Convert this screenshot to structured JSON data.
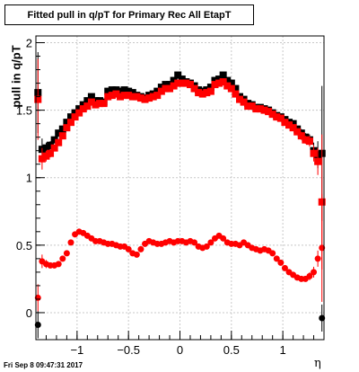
{
  "title_box": "Fitted pull in q/pT for Primary Rec All EtapT",
  "datestamp": "Fri Sep  8 09:47:31 2017",
  "chart_data": {
    "type": "scatter",
    "title": "Fitted pull in q/pT for Primary Rec All EtapT",
    "xlabel": "η",
    "ylabel": "pull in q/pT",
    "xlim": [
      -1.4,
      1.4
    ],
    "ylim": [
      -0.2,
      2.05
    ],
    "xticks": [
      -1,
      -0.5,
      0,
      0.5,
      1
    ],
    "xtick_labels": [
      "−1",
      "−0.5",
      "0",
      "0.5",
      "1"
    ],
    "yticks": [
      0,
      0.5,
      1,
      1.5,
      2
    ],
    "ytick_labels": [
      "0",
      "0.5",
      "1",
      "1.5",
      "2"
    ],
    "grid": true,
    "legend": "none",
    "series": [
      {
        "color": "#000000",
        "marker": "square",
        "x": [
          -1.38,
          -1.34,
          -1.3,
          -1.26,
          -1.22,
          -1.18,
          -1.14,
          -1.1,
          -1.06,
          -1.02,
          -0.98,
          -0.94,
          -0.9,
          -0.86,
          -0.82,
          -0.78,
          -0.74,
          -0.7,
          -0.66,
          -0.62,
          -0.58,
          -0.54,
          -0.5,
          -0.46,
          -0.42,
          -0.38,
          -0.34,
          -0.3,
          -0.26,
          -0.22,
          -0.18,
          -0.14,
          -0.1,
          -0.06,
          -0.02,
          0.02,
          0.06,
          0.1,
          0.14,
          0.18,
          0.22,
          0.26,
          0.3,
          0.34,
          0.38,
          0.42,
          0.46,
          0.5,
          0.54,
          0.58,
          0.62,
          0.66,
          0.7,
          0.74,
          0.78,
          0.82,
          0.86,
          0.9,
          0.94,
          0.98,
          1.02,
          1.06,
          1.1,
          1.14,
          1.18,
          1.22,
          1.26,
          1.3,
          1.34,
          1.38
        ],
        "values": [
          1.63,
          1.21,
          1.22,
          1.24,
          1.28,
          1.33,
          1.36,
          1.41,
          1.45,
          1.48,
          1.51,
          1.54,
          1.57,
          1.6,
          1.57,
          1.57,
          1.56,
          1.64,
          1.65,
          1.65,
          1.64,
          1.65,
          1.64,
          1.63,
          1.61,
          1.6,
          1.59,
          1.61,
          1.62,
          1.64,
          1.67,
          1.69,
          1.69,
          1.72,
          1.76,
          1.73,
          1.71,
          1.7,
          1.68,
          1.65,
          1.64,
          1.65,
          1.67,
          1.72,
          1.73,
          1.76,
          1.72,
          1.7,
          1.66,
          1.6,
          1.58,
          1.55,
          1.54,
          1.52,
          1.52,
          1.51,
          1.5,
          1.48,
          1.46,
          1.45,
          1.43,
          1.41,
          1.4,
          1.36,
          1.33,
          1.3,
          1.28,
          1.2,
          1.17,
          1.18
        ],
        "errors": [
          0.3,
          0.08,
          0.04,
          0.03,
          0.02,
          0.02,
          0.02,
          0.02,
          0.02,
          0.01,
          0.01,
          0.01,
          0.01,
          0.01,
          0.01,
          0.01,
          0.01,
          0.01,
          0.01,
          0.01,
          0.01,
          0.01,
          0.01,
          0.01,
          0.01,
          0.01,
          0.01,
          0.01,
          0.01,
          0.01,
          0.01,
          0.01,
          0.01,
          0.01,
          0.01,
          0.01,
          0.01,
          0.01,
          0.01,
          0.01,
          0.01,
          0.01,
          0.01,
          0.01,
          0.01,
          0.01,
          0.01,
          0.01,
          0.01,
          0.01,
          0.01,
          0.01,
          0.01,
          0.01,
          0.01,
          0.01,
          0.01,
          0.01,
          0.01,
          0.01,
          0.02,
          0.02,
          0.02,
          0.02,
          0.03,
          0.03,
          0.04,
          0.06,
          0.1,
          0.5
        ]
      },
      {
        "color": "#ff0000",
        "marker": "square",
        "x": [
          -1.38,
          -1.34,
          -1.3,
          -1.26,
          -1.22,
          -1.18,
          -1.14,
          -1.1,
          -1.06,
          -1.02,
          -0.98,
          -0.94,
          -0.9,
          -0.86,
          -0.82,
          -0.78,
          -0.74,
          -0.7,
          -0.66,
          -0.62,
          -0.58,
          -0.54,
          -0.5,
          -0.46,
          -0.42,
          -0.38,
          -0.34,
          -0.3,
          -0.26,
          -0.22,
          -0.18,
          -0.14,
          -0.1,
          -0.06,
          -0.02,
          0.02,
          0.06,
          0.1,
          0.14,
          0.18,
          0.22,
          0.26,
          0.3,
          0.34,
          0.38,
          0.42,
          0.46,
          0.5,
          0.54,
          0.58,
          0.62,
          0.66,
          0.7,
          0.74,
          0.78,
          0.82,
          0.86,
          0.9,
          0.94,
          0.98,
          1.02,
          1.06,
          1.1,
          1.14,
          1.18,
          1.22,
          1.26,
          1.3,
          1.34,
          1.38
        ],
        "values": [
          1.58,
          1.14,
          1.16,
          1.18,
          1.22,
          1.26,
          1.31,
          1.37,
          1.41,
          1.45,
          1.48,
          1.51,
          1.53,
          1.56,
          1.54,
          1.55,
          1.55,
          1.6,
          1.61,
          1.62,
          1.6,
          1.61,
          1.61,
          1.6,
          1.6,
          1.59,
          1.58,
          1.59,
          1.6,
          1.61,
          1.64,
          1.66,
          1.66,
          1.68,
          1.7,
          1.7,
          1.7,
          1.69,
          1.66,
          1.63,
          1.62,
          1.63,
          1.64,
          1.69,
          1.7,
          1.71,
          1.68,
          1.66,
          1.62,
          1.58,
          1.56,
          1.53,
          1.53,
          1.51,
          1.51,
          1.5,
          1.49,
          1.47,
          1.45,
          1.44,
          1.41,
          1.39,
          1.37,
          1.34,
          1.31,
          1.28,
          1.27,
          1.18,
          1.12,
          0.82
        ],
        "errors": [
          0.3,
          0.08,
          0.04,
          0.03,
          0.02,
          0.02,
          0.02,
          0.02,
          0.02,
          0.01,
          0.01,
          0.01,
          0.01,
          0.01,
          0.01,
          0.01,
          0.01,
          0.01,
          0.01,
          0.01,
          0.01,
          0.01,
          0.01,
          0.01,
          0.01,
          0.01,
          0.01,
          0.01,
          0.01,
          0.01,
          0.01,
          0.01,
          0.01,
          0.01,
          0.01,
          0.01,
          0.01,
          0.01,
          0.01,
          0.01,
          0.01,
          0.01,
          0.01,
          0.01,
          0.01,
          0.01,
          0.01,
          0.01,
          0.01,
          0.01,
          0.01,
          0.01,
          0.01,
          0.01,
          0.01,
          0.01,
          0.01,
          0.01,
          0.01,
          0.01,
          0.02,
          0.02,
          0.02,
          0.02,
          0.03,
          0.03,
          0.04,
          0.06,
          0.1,
          0.5
        ]
      },
      {
        "color": "#000000",
        "marker": "circle",
        "x": [
          -1.38,
          1.38
        ],
        "values": [
          -0.09,
          -0.04
        ],
        "errors": [
          0.1,
          0.1
        ]
      },
      {
        "color": "#ff0000",
        "marker": "circle",
        "x": [
          -1.38,
          -1.34,
          -1.3,
          -1.26,
          -1.22,
          -1.18,
          -1.14,
          -1.1,
          -1.06,
          -1.02,
          -0.98,
          -0.94,
          -0.9,
          -0.86,
          -0.82,
          -0.78,
          -0.74,
          -0.7,
          -0.66,
          -0.62,
          -0.58,
          -0.54,
          -0.5,
          -0.46,
          -0.42,
          -0.38,
          -0.34,
          -0.3,
          -0.26,
          -0.22,
          -0.18,
          -0.14,
          -0.1,
          -0.06,
          -0.02,
          0.02,
          0.06,
          0.1,
          0.14,
          0.18,
          0.22,
          0.26,
          0.3,
          0.34,
          0.38,
          0.42,
          0.46,
          0.5,
          0.54,
          0.58,
          0.62,
          0.66,
          0.7,
          0.74,
          0.78,
          0.82,
          0.86,
          0.9,
          0.94,
          0.98,
          1.02,
          1.06,
          1.1,
          1.14,
          1.18,
          1.22,
          1.26,
          1.3,
          1.34,
          1.38
        ],
        "values": [
          0.11,
          0.38,
          0.36,
          0.35,
          0.35,
          0.36,
          0.4,
          0.44,
          0.52,
          0.58,
          0.6,
          0.59,
          0.57,
          0.55,
          0.53,
          0.53,
          0.52,
          0.51,
          0.51,
          0.5,
          0.49,
          0.49,
          0.47,
          0.44,
          0.43,
          0.47,
          0.51,
          0.53,
          0.52,
          0.51,
          0.51,
          0.52,
          0.53,
          0.52,
          0.53,
          0.53,
          0.52,
          0.53,
          0.52,
          0.49,
          0.48,
          0.49,
          0.52,
          0.55,
          0.57,
          0.55,
          0.52,
          0.51,
          0.51,
          0.5,
          0.52,
          0.5,
          0.48,
          0.47,
          0.46,
          0.47,
          0.46,
          0.44,
          0.4,
          0.37,
          0.33,
          0.3,
          0.28,
          0.26,
          0.25,
          0.25,
          0.27,
          0.3,
          0.4,
          0.48
        ],
        "errors": [
          0.1,
          0.05,
          0.03,
          0.02,
          0.02,
          0.02,
          0.01,
          0.01,
          0.01,
          0.01,
          0.01,
          0.01,
          0.01,
          0.01,
          0.01,
          0.01,
          0.01,
          0.01,
          0.01,
          0.01,
          0.01,
          0.01,
          0.01,
          0.01,
          0.01,
          0.01,
          0.01,
          0.01,
          0.01,
          0.01,
          0.01,
          0.01,
          0.01,
          0.01,
          0.01,
          0.01,
          0.01,
          0.01,
          0.01,
          0.01,
          0.01,
          0.01,
          0.01,
          0.01,
          0.01,
          0.01,
          0.01,
          0.01,
          0.01,
          0.01,
          0.01,
          0.01,
          0.01,
          0.01,
          0.01,
          0.01,
          0.01,
          0.01,
          0.01,
          0.01,
          0.01,
          0.01,
          0.01,
          0.01,
          0.02,
          0.02,
          0.03,
          0.04,
          0.06,
          0.4
        ]
      }
    ]
  }
}
